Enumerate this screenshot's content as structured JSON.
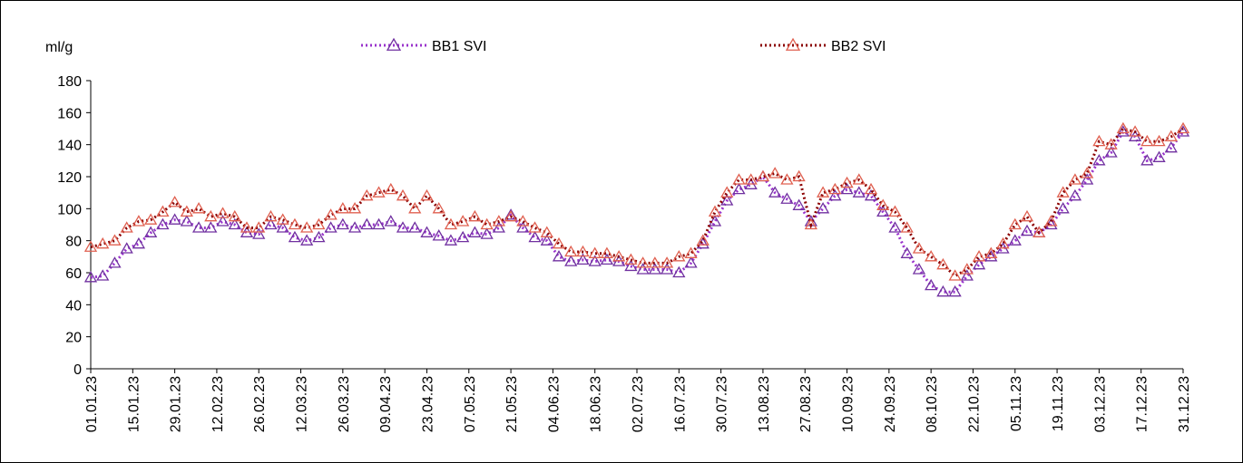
{
  "chart_data": {
    "type": "line",
    "y_label": "ml/g",
    "x": [
      "01.01.23",
      "05.01.23",
      "09.01.23",
      "13.01.23",
      "17.01.23",
      "21.01.23",
      "25.01.23",
      "29.01.23",
      "02.02.23",
      "06.02.23",
      "10.02.23",
      "14.02.23",
      "18.02.23",
      "22.02.23",
      "26.02.23",
      "02.03.23",
      "06.03.23",
      "10.03.23",
      "14.03.23",
      "18.03.23",
      "22.03.23",
      "26.03.23",
      "30.03.23",
      "03.04.23",
      "07.04.23",
      "11.04.23",
      "15.04.23",
      "19.04.23",
      "23.04.23",
      "27.04.23",
      "01.05.23",
      "05.05.23",
      "09.05.23",
      "13.05.23",
      "17.05.23",
      "21.05.23",
      "25.05.23",
      "29.05.23",
      "02.06.23",
      "06.06.23",
      "10.06.23",
      "14.06.23",
      "18.06.23",
      "22.06.23",
      "26.06.23",
      "30.06.23",
      "04.07.23",
      "08.07.23",
      "12.07.23",
      "16.07.23",
      "20.07.23",
      "24.07.23",
      "28.07.23",
      "01.08.23",
      "05.08.23",
      "09.08.23",
      "13.08.23",
      "17.08.23",
      "21.08.23",
      "25.08.23",
      "29.08.23",
      "02.09.23",
      "06.09.23",
      "10.09.23",
      "14.09.23",
      "18.09.23",
      "22.09.23",
      "26.09.23",
      "30.09.23",
      "04.10.23",
      "08.10.23",
      "12.10.23",
      "16.10.23",
      "20.10.23",
      "24.10.23",
      "28.10.23",
      "01.11.23",
      "05.11.23",
      "09.11.23",
      "13.11.23",
      "17.11.23",
      "21.11.23",
      "25.11.23",
      "29.11.23",
      "03.12.23",
      "07.12.23",
      "11.12.23",
      "15.12.23",
      "19.12.23",
      "23.12.23",
      "27.12.23",
      "31.12.23"
    ],
    "series": [
      {
        "name": "BB1 SVI",
        "color": "#9933cc",
        "marker_color": "#7030a0",
        "values": [
          57,
          58,
          66,
          75,
          78,
          85,
          90,
          93,
          92,
          88,
          88,
          92,
          90,
          85,
          84,
          90,
          88,
          82,
          80,
          82,
          88,
          90,
          88,
          90,
          90,
          92,
          88,
          88,
          85,
          83,
          80,
          82,
          85,
          84,
          88,
          96,
          88,
          82,
          80,
          70,
          67,
          68,
          67,
          68,
          67,
          64,
          62,
          62,
          62,
          60,
          66,
          78,
          92,
          105,
          112,
          115,
          120,
          110,
          106,
          102,
          92,
          100,
          108,
          112,
          110,
          108,
          98,
          88,
          72,
          62,
          52,
          48,
          48,
          58,
          65,
          70,
          75,
          80,
          86,
          85,
          90,
          100,
          108,
          118,
          130,
          135,
          148,
          145,
          130,
          132,
          138,
          148
        ]
      },
      {
        "name": "BB2 SVI",
        "color": "#8b0000",
        "marker_color": "#e06050",
        "values": [
          76,
          78,
          80,
          88,
          92,
          93,
          98,
          104,
          98,
          100,
          95,
          97,
          95,
          88,
          88,
          95,
          93,
          90,
          88,
          90,
          96,
          100,
          100,
          108,
          110,
          112,
          108,
          100,
          108,
          100,
          90,
          92,
          95,
          90,
          92,
          95,
          92,
          88,
          85,
          78,
          73,
          73,
          72,
          72,
          70,
          68,
          66,
          66,
          66,
          70,
          72,
          80,
          98,
          110,
          118,
          118,
          120,
          122,
          118,
          120,
          90,
          110,
          112,
          116,
          118,
          112,
          102,
          98,
          88,
          75,
          70,
          65,
          58,
          62,
          70,
          72,
          78,
          90,
          95,
          85,
          92,
          110,
          118,
          122,
          142,
          140,
          150,
          148,
          142,
          142,
          145,
          150
        ]
      }
    ],
    "xlim": [
      "01.01.23",
      "31.12.23"
    ],
    "xticks": [
      "01.01.23",
      "15.01.23",
      "29.01.23",
      "12.02.23",
      "26.02.23",
      "12.03.23",
      "26.03.23",
      "09.04.23",
      "23.04.23",
      "07.05.23",
      "21.05.23",
      "04.06.23",
      "18.06.23",
      "02.07.23",
      "16.07.23",
      "30.07.23",
      "13.08.23",
      "27.08.23",
      "10.09.23",
      "24.09.23",
      "08.10.23",
      "22.10.23",
      "05.11.23",
      "19.11.23",
      "03.12.23",
      "17.12.23",
      "31.12.23"
    ],
    "ylim": [
      0,
      180
    ],
    "yticks": [
      0,
      20,
      40,
      60,
      80,
      100,
      120,
      140,
      160,
      180
    ],
    "grid": false,
    "legend": "top"
  }
}
